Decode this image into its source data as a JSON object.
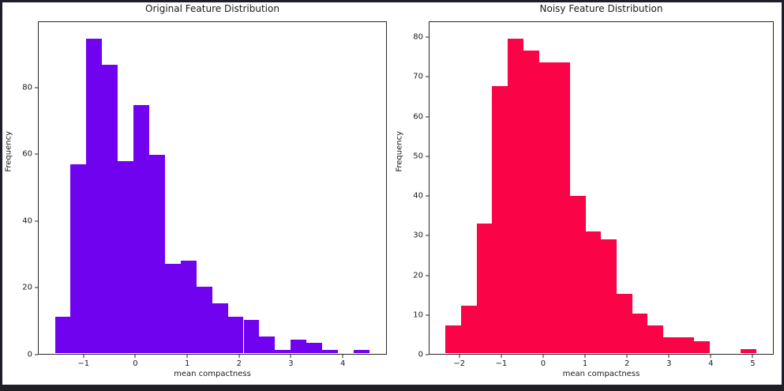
{
  "figure": {
    "background": "#ffffff",
    "frame_color": "#1e1d28",
    "text_color": "#1a1a1a",
    "spine_color": "#262626"
  },
  "chart_data": [
    {
      "type": "bar",
      "subtype": "histogram",
      "title": "Original Feature Distribution",
      "xlabel": "mean compactness",
      "ylabel": "Frequency",
      "bar_color": "#7102f0",
      "bin_start": -1.58,
      "bin_width": 0.306,
      "counts": [
        11,
        57,
        95,
        87,
        58,
        75,
        60,
        27,
        28,
        20,
        15,
        11,
        10,
        5,
        1,
        4,
        3,
        1,
        0,
        1
      ],
      "xticks": [
        -1,
        0,
        1,
        2,
        3,
        4
      ],
      "yticks": [
        0,
        20,
        40,
        60,
        80
      ],
      "xlim": [
        -1.88,
        4.85
      ],
      "ylim": [
        0,
        99.75
      ],
      "grid": false,
      "legend": false
    },
    {
      "type": "bar",
      "subtype": "histogram",
      "title": "Noisy Feature Distribution",
      "xlabel": "mean compactness",
      "ylabel": "Frequency",
      "bar_color": "#fa0347",
      "bin_start": -2.36,
      "bin_width": 0.374,
      "counts": [
        7,
        12,
        33,
        68,
        80,
        77,
        74,
        74,
        40,
        31,
        29,
        15,
        10,
        7,
        4,
        4,
        3,
        0,
        0,
        1
      ],
      "xticks": [
        -2,
        -1,
        0,
        1,
        2,
        3,
        4,
        5
      ],
      "yticks": [
        0,
        10,
        20,
        30,
        40,
        50,
        60,
        70,
        80
      ],
      "xlim": [
        -2.73,
        5.5
      ],
      "ylim": [
        0,
        84
      ],
      "grid": false,
      "legend": false
    }
  ]
}
